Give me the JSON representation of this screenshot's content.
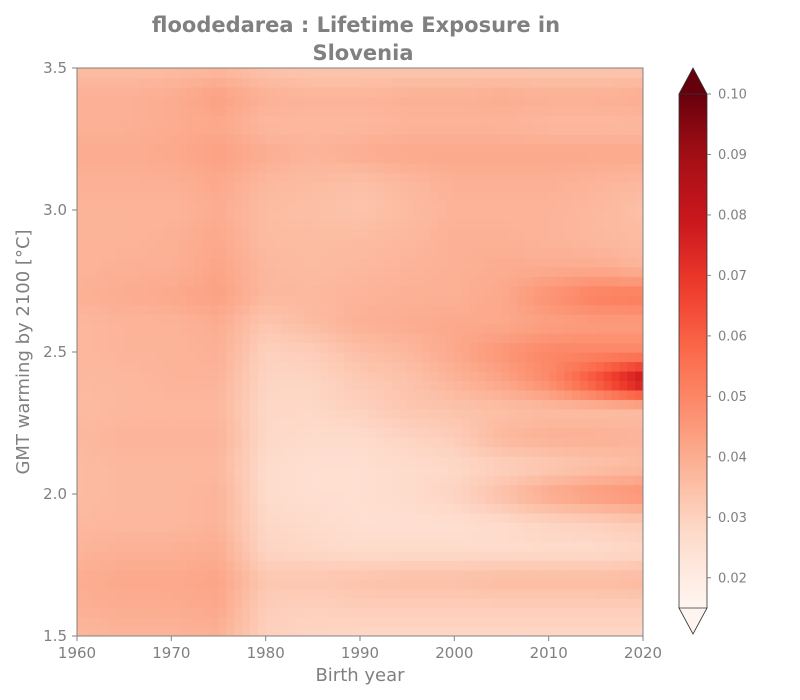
{
  "chart_data": {
    "type": "heatmap",
    "title_line1": "floodedarea : Lifetime Exposure in",
    "title_line2": "Slovenia",
    "xlabel": "Birth year",
    "ylabel": "GMT warming by 2100 [°C]",
    "xlim": [
      1960,
      2020
    ],
    "ylim": [
      1.5,
      3.5
    ],
    "x_ticks": [
      "1960",
      "1970",
      "1980",
      "1990",
      "2000",
      "2010",
      "2020"
    ],
    "y_ticks": [
      "1.5",
      "2.0",
      "2.5",
      "3.0",
      "3.5"
    ],
    "colormap": "Reds",
    "colorbar": {
      "min": 0.015,
      "max": 0.1,
      "extend": "both",
      "ticks": [
        "0.02",
        "0.03",
        "0.04",
        "0.05",
        "0.06",
        "0.07",
        "0.08",
        "0.09",
        "0.10"
      ],
      "tick_values": [
        0.02,
        0.03,
        0.04,
        0.05,
        0.06,
        0.07,
        0.08,
        0.09,
        0.1
      ]
    },
    "x": [
      1960,
      1965,
      1970,
      1975,
      1980,
      1985,
      1990,
      1995,
      2000,
      2005,
      2010,
      2015,
      2020
    ],
    "y": [
      1.5,
      1.6,
      1.7,
      1.8,
      1.9,
      2.0,
      2.1,
      2.2,
      2.3,
      2.4,
      2.5,
      2.6,
      2.7,
      2.8,
      2.9,
      3.0,
      3.1,
      3.2,
      3.3,
      3.4,
      3.5
    ],
    "z": [
      [
        0.037,
        0.038,
        0.038,
        0.039,
        0.03,
        0.029,
        0.028,
        0.028,
        0.028,
        0.028,
        0.028,
        0.028,
        0.028
      ],
      [
        0.039,
        0.04,
        0.04,
        0.041,
        0.031,
        0.03,
        0.031,
        0.031,
        0.031,
        0.031,
        0.031,
        0.031,
        0.031
      ],
      [
        0.04,
        0.041,
        0.041,
        0.042,
        0.033,
        0.033,
        0.034,
        0.035,
        0.035,
        0.036,
        0.036,
        0.036,
        0.037
      ],
      [
        0.038,
        0.039,
        0.039,
        0.04,
        0.029,
        0.028,
        0.027,
        0.027,
        0.027,
        0.027,
        0.027,
        0.027,
        0.028
      ],
      [
        0.037,
        0.037,
        0.037,
        0.038,
        0.028,
        0.027,
        0.026,
        0.026,
        0.026,
        0.027,
        0.029,
        0.03,
        0.032
      ],
      [
        0.036,
        0.037,
        0.037,
        0.038,
        0.027,
        0.026,
        0.026,
        0.027,
        0.029,
        0.035,
        0.041,
        0.045,
        0.047
      ],
      [
        0.036,
        0.037,
        0.037,
        0.037,
        0.027,
        0.026,
        0.026,
        0.027,
        0.028,
        0.03,
        0.032,
        0.034,
        0.036
      ],
      [
        0.037,
        0.038,
        0.038,
        0.038,
        0.028,
        0.027,
        0.027,
        0.029,
        0.031,
        0.037,
        0.039,
        0.039,
        0.038
      ],
      [
        0.036,
        0.037,
        0.037,
        0.037,
        0.028,
        0.028,
        0.03,
        0.033,
        0.034,
        0.035,
        0.036,
        0.036,
        0.036
      ],
      [
        0.037,
        0.037,
        0.038,
        0.038,
        0.029,
        0.029,
        0.032,
        0.034,
        0.038,
        0.042,
        0.049,
        0.064,
        0.083
      ],
      [
        0.037,
        0.038,
        0.038,
        0.039,
        0.03,
        0.031,
        0.035,
        0.037,
        0.041,
        0.046,
        0.05,
        0.05,
        0.05
      ],
      [
        0.037,
        0.038,
        0.038,
        0.04,
        0.033,
        0.036,
        0.039,
        0.04,
        0.041,
        0.041,
        0.043,
        0.044,
        0.044
      ],
      [
        0.039,
        0.04,
        0.041,
        0.043,
        0.037,
        0.037,
        0.038,
        0.039,
        0.039,
        0.041,
        0.047,
        0.052,
        0.053
      ],
      [
        0.038,
        0.039,
        0.039,
        0.042,
        0.037,
        0.036,
        0.037,
        0.038,
        0.039,
        0.04,
        0.04,
        0.04,
        0.038
      ],
      [
        0.038,
        0.038,
        0.039,
        0.041,
        0.036,
        0.036,
        0.036,
        0.037,
        0.039,
        0.039,
        0.038,
        0.037,
        0.036
      ],
      [
        0.038,
        0.038,
        0.038,
        0.04,
        0.036,
        0.035,
        0.034,
        0.036,
        0.038,
        0.038,
        0.038,
        0.037,
        0.035
      ],
      [
        0.039,
        0.039,
        0.039,
        0.041,
        0.037,
        0.036,
        0.035,
        0.037,
        0.039,
        0.039,
        0.039,
        0.038,
        0.037
      ],
      [
        0.04,
        0.04,
        0.041,
        0.043,
        0.04,
        0.038,
        0.04,
        0.041,
        0.041,
        0.041,
        0.041,
        0.041,
        0.041
      ],
      [
        0.039,
        0.039,
        0.04,
        0.041,
        0.037,
        0.037,
        0.037,
        0.038,
        0.038,
        0.038,
        0.037,
        0.037,
        0.037
      ],
      [
        0.039,
        0.039,
        0.04,
        0.043,
        0.039,
        0.038,
        0.038,
        0.039,
        0.039,
        0.04,
        0.039,
        0.039,
        0.04
      ],
      [
        0.036,
        0.036,
        0.036,
        0.037,
        0.034,
        0.033,
        0.033,
        0.033,
        0.033,
        0.033,
        0.033,
        0.033,
        0.033
      ]
    ]
  }
}
